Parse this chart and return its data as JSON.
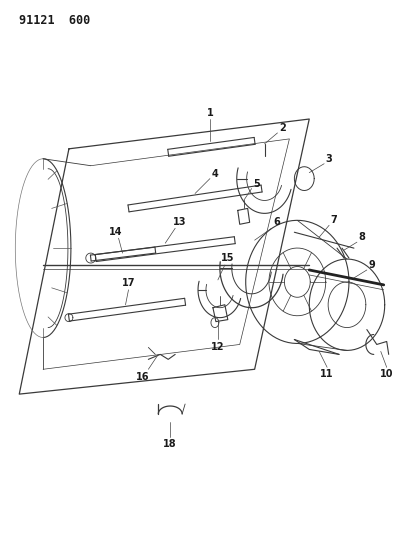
{
  "title": "91121  600",
  "bg_color": "#ffffff",
  "line_color": "#3a3a3a",
  "text_color": "#1a1a1a",
  "fig_width": 4.02,
  "fig_height": 5.33,
  "dpi": 100
}
